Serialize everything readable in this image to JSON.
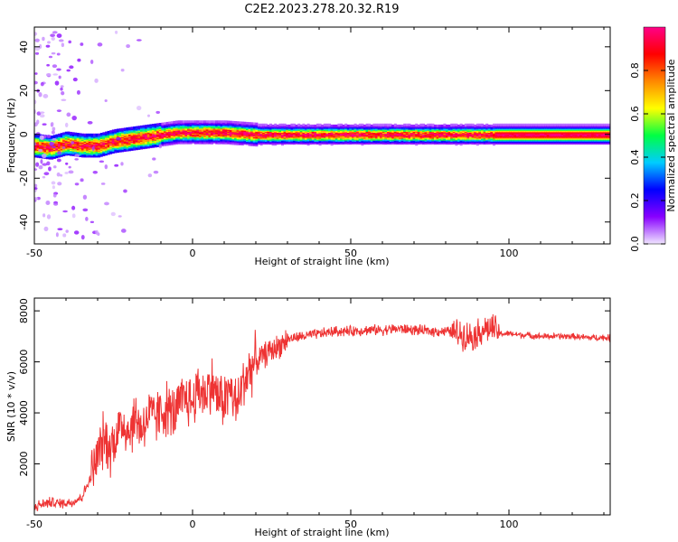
{
  "title": "C2E2.2023.278.20.32.R19",
  "chart_data": [
    {
      "type": "heatmap",
      "xlabel": "Height of straight line (km)",
      "ylabel": "Frequency (Hz)",
      "xlim": [
        -50,
        132
      ],
      "ylim": [
        -50,
        49
      ],
      "xticks": [
        -50,
        0,
        50,
        100
      ],
      "yticks": [
        -40,
        -20,
        0,
        20,
        40
      ],
      "x_tick_labels": [
        "-50",
        "0",
        "50",
        "100"
      ],
      "y_tick_labels": [
        "-40",
        "-20",
        "0",
        "20",
        "40"
      ],
      "ridge": {
        "x": [
          -50,
          -45,
          -40,
          -35,
          -30,
          -25,
          -20,
          -15,
          -10,
          -5,
          0,
          10,
          20,
          30,
          50,
          70,
          90,
          110,
          132
        ],
        "y": [
          -5,
          -6,
          -4,
          -5,
          -5,
          -3,
          -2,
          -1,
          0,
          1,
          1,
          1,
          0,
          0,
          0,
          0,
          0,
          0,
          0
        ]
      },
      "colorbar": {
        "label": "Normalized spectral amplitude",
        "range": [
          0,
          1
        ],
        "ticks": [
          0.0,
          0.2,
          0.4,
          0.6,
          0.8
        ],
        "tick_labels": [
          "0.0",
          "0.2",
          "0.4",
          "0.6",
          "0.8"
        ],
        "colors": [
          "#f0e6ff",
          "#8800ff",
          "#0000ff",
          "#00ccff",
          "#00ff44",
          "#ffff00",
          "#ff8800",
          "#ff0000",
          "#ff0088"
        ]
      }
    },
    {
      "type": "line",
      "xlabel": "Height of straight line (km)",
      "ylabel": "SNR (10 * v/v)",
      "xlim": [
        -50,
        132
      ],
      "ylim": [
        0,
        8500
      ],
      "xticks": [
        -50,
        0,
        50,
        100
      ],
      "yticks": [
        2000,
        4000,
        6000,
        8000
      ],
      "x_tick_labels": [
        "-50",
        "0",
        "50",
        "100"
      ],
      "y_tick_labels": [
        "2000",
        "4000",
        "6000",
        "8000"
      ],
      "color": "#ee3333",
      "series": [
        {
          "name": "SNR",
          "x": [
            -50,
            -48,
            -45,
            -42,
            -38,
            -35,
            -32,
            -30,
            -28,
            -26,
            -24,
            -22,
            -20,
            -18,
            -16,
            -14,
            -12,
            -10,
            -8,
            -6,
            -4,
            -2,
            0,
            2,
            4,
            6,
            8,
            10,
            12,
            14,
            16,
            18,
            20,
            22,
            24,
            26,
            28,
            30,
            35,
            40,
            45,
            50,
            55,
            60,
            65,
            70,
            75,
            80,
            85,
            88,
            90,
            92,
            95,
            97,
            100,
            105,
            110,
            115,
            120,
            125,
            132
          ],
          "y": [
            300,
            400,
            500,
            450,
            500,
            700,
            1500,
            2300,
            3000,
            2600,
            3200,
            3600,
            3300,
            3800,
            3400,
            3900,
            3800,
            4000,
            4200,
            3900,
            4300,
            4600,
            4400,
            5000,
            4700,
            5200,
            4600,
            4500,
            4900,
            4200,
            5200,
            5700,
            6000,
            6200,
            6400,
            6500,
            6700,
            6900,
            7000,
            7100,
            7200,
            7200,
            7250,
            7250,
            7300,
            7250,
            7200,
            7200,
            7100,
            7000,
            7100,
            7300,
            7300,
            7100,
            7100,
            7050,
            7000,
            7000,
            7000,
            6950,
            6950
          ]
        }
      ]
    }
  ]
}
